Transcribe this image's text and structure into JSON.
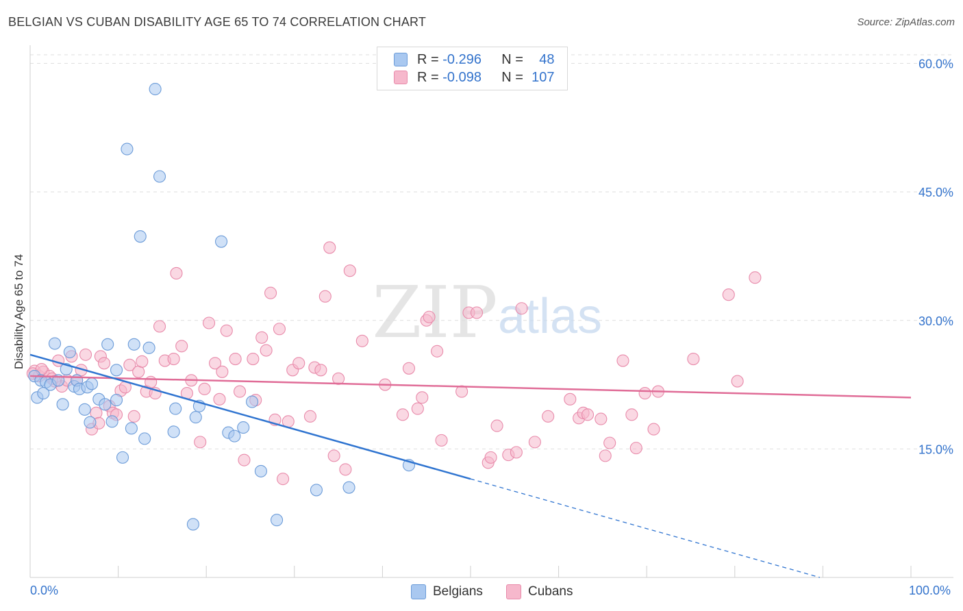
{
  "title": "BELGIAN VS CUBAN DISABILITY AGE 65 TO 74 CORRELATION CHART",
  "source": "Source: ZipAtlas.com",
  "watermark": {
    "zip": "ZIP",
    "atlas": "atlas"
  },
  "legend": {
    "rows": [
      {
        "r_label": "R =",
        "r_value": "-0.296",
        "n_label": "N =",
        "n_value": "48"
      },
      {
        "r_label": "R =",
        "r_value": "-0.098",
        "n_label": "N =",
        "n_value": "107"
      }
    ]
  },
  "bottom_legend": {
    "belgians": "Belgians",
    "cubans": "Cubans"
  },
  "colors": {
    "belgian_fill": "#a9c8f0",
    "belgian_stroke": "#6b9bd8",
    "belgian_line": "#2f74d0",
    "cuban_fill": "#f6b8cc",
    "cuban_stroke": "#e88aaa",
    "cuban_line": "#e06c97",
    "tick_text": "#3373cc",
    "grid": "#dedede"
  },
  "chart_data": {
    "type": "scatter",
    "title": "BELGIAN VS CUBAN DISABILITY AGE 65 TO 74 CORRELATION CHART",
    "xlabel": "",
    "ylabel": "Disability Age 65 to 74",
    "xlim": [
      0,
      100
    ],
    "ylim": [
      0,
      61
    ],
    "x_tick_labels": [
      "0.0%",
      "100.0%"
    ],
    "y_ticks": [
      15,
      30,
      45,
      60
    ],
    "y_tick_labels": [
      "15.0%",
      "30.0%",
      "45.0%",
      "60.0%"
    ],
    "series": [
      {
        "name": "Belgians",
        "r": -0.296,
        "n": 48,
        "trend": {
          "x0": 0,
          "y0": 26.0,
          "x1": 50,
          "y1": 11.5,
          "dashed_to_x": 100,
          "dashed_y1": -3.0
        },
        "points": [
          [
            0.5,
            23.5
          ],
          [
            0.8,
            21
          ],
          [
            1.2,
            23
          ],
          [
            1.5,
            21.5
          ],
          [
            1.8,
            22.8
          ],
          [
            2.3,
            22.5
          ],
          [
            2.8,
            27.3
          ],
          [
            3.2,
            23
          ],
          [
            3.7,
            20.2
          ],
          [
            4.1,
            24.3
          ],
          [
            4.5,
            26.3
          ],
          [
            5,
            22.3
          ],
          [
            5.3,
            23
          ],
          [
            5.6,
            22
          ],
          [
            6.2,
            19.6
          ],
          [
            6.5,
            22.2
          ],
          [
            6.8,
            18.1
          ],
          [
            7,
            22.6
          ],
          [
            7.8,
            20.8
          ],
          [
            8.5,
            20.2
          ],
          [
            8.8,
            27.2
          ],
          [
            9.3,
            18.2
          ],
          [
            9.8,
            20.7
          ],
          [
            9.8,
            24.2
          ],
          [
            10.5,
            14
          ],
          [
            11,
            50
          ],
          [
            11.5,
            17.4
          ],
          [
            11.8,
            27.2
          ],
          [
            12.5,
            39.8
          ],
          [
            13,
            16.2
          ],
          [
            13.5,
            26.8
          ],
          [
            14.2,
            57
          ],
          [
            14.7,
            46.8
          ],
          [
            16.3,
            17
          ],
          [
            16.5,
            19.7
          ],
          [
            18.5,
            6.2
          ],
          [
            18.8,
            18.7
          ],
          [
            19.2,
            20
          ],
          [
            21.7,
            39.2
          ],
          [
            22.5,
            16.9
          ],
          [
            23.2,
            16.5
          ],
          [
            24.2,
            17.5
          ],
          [
            25.2,
            20.5
          ],
          [
            26.2,
            12.4
          ],
          [
            28,
            6.7
          ],
          [
            32.5,
            10.2
          ],
          [
            36.2,
            10.5
          ],
          [
            43,
            13.1
          ]
        ]
      },
      {
        "name": "Cubans",
        "r": -0.098,
        "n": 107,
        "trend": {
          "x0": 0,
          "y0": 23.5,
          "x1": 100,
          "y1": 21.0
        },
        "points": [
          [
            0.5,
            24.1
          ],
          [
            1,
            23.5
          ],
          [
            1.5,
            24
          ],
          [
            2.2,
            23.5
          ],
          [
            2.5,
            23.2
          ],
          [
            3.2,
            25.3
          ],
          [
            3.6,
            22.3
          ],
          [
            4.2,
            23
          ],
          [
            4.7,
            25.8
          ],
          [
            5.3,
            23
          ],
          [
            5.8,
            24.2
          ],
          [
            6.3,
            26
          ],
          [
            7,
            17.3
          ],
          [
            7.5,
            19.2
          ],
          [
            7.8,
            18
          ],
          [
            8,
            25.8
          ],
          [
            8.4,
            25
          ],
          [
            9,
            20
          ],
          [
            9.4,
            19.2
          ],
          [
            9.8,
            19
          ],
          [
            10.3,
            21.8
          ],
          [
            10.8,
            22.2
          ],
          [
            11.3,
            24.8
          ],
          [
            11.8,
            18.8
          ],
          [
            12.3,
            24
          ],
          [
            12.7,
            25.2
          ],
          [
            13.2,
            21.7
          ],
          [
            13.7,
            22.8
          ],
          [
            14.2,
            21.5
          ],
          [
            14.7,
            29.3
          ],
          [
            15.3,
            25.3
          ],
          [
            16.3,
            25.5
          ],
          [
            16.6,
            35.5
          ],
          [
            17.2,
            27
          ],
          [
            17.8,
            21.5
          ],
          [
            18.3,
            23
          ],
          [
            19.3,
            15.8
          ],
          [
            19.8,
            22
          ],
          [
            20.3,
            29.7
          ],
          [
            21,
            25
          ],
          [
            21.5,
            20.8
          ],
          [
            21.8,
            24
          ],
          [
            22.3,
            28.8
          ],
          [
            23.3,
            25.5
          ],
          [
            23.8,
            21.7
          ],
          [
            24.3,
            13.7
          ],
          [
            25.3,
            25.5
          ],
          [
            25.6,
            20.7
          ],
          [
            26.3,
            28
          ],
          [
            26.8,
            26.5
          ],
          [
            27.3,
            33.2
          ],
          [
            27.8,
            18.4
          ],
          [
            28.3,
            29
          ],
          [
            28.7,
            11.5
          ],
          [
            29.3,
            18.2
          ],
          [
            29.8,
            24.2
          ],
          [
            30.5,
            25
          ],
          [
            31.8,
            18.8
          ],
          [
            32.3,
            24.5
          ],
          [
            33,
            24.2
          ],
          [
            33.5,
            32.8
          ],
          [
            34,
            38.5
          ],
          [
            34.5,
            14.2
          ],
          [
            35,
            23.2
          ],
          [
            35.8,
            12.6
          ],
          [
            36.3,
            35.8
          ],
          [
            37.7,
            27.6
          ],
          [
            40.3,
            22.5
          ],
          [
            42.3,
            19
          ],
          [
            43,
            24.4
          ],
          [
            44,
            19.7
          ],
          [
            44.5,
            21
          ],
          [
            45,
            30
          ],
          [
            45.3,
            30.4
          ],
          [
            46.2,
            26.4
          ],
          [
            46.7,
            16
          ],
          [
            49,
            21.7
          ],
          [
            49.8,
            30.9
          ],
          [
            50.7,
            30.9
          ],
          [
            52,
            13.4
          ],
          [
            52.3,
            14
          ],
          [
            53,
            17.7
          ],
          [
            54.3,
            14.3
          ],
          [
            55.2,
            14.6
          ],
          [
            55.8,
            31.4
          ],
          [
            57.3,
            15.8
          ],
          [
            58.8,
            18.8
          ],
          [
            61.3,
            20.8
          ],
          [
            62.3,
            18.6
          ],
          [
            62.8,
            19.2
          ],
          [
            63.3,
            19
          ],
          [
            64.8,
            18.5
          ],
          [
            65.3,
            14.2
          ],
          [
            65.8,
            15.7
          ],
          [
            67.3,
            25.3
          ],
          [
            68.3,
            19
          ],
          [
            68.8,
            15.1
          ],
          [
            69.8,
            21.5
          ],
          [
            70.8,
            17.3
          ],
          [
            71.3,
            21.7
          ],
          [
            75.3,
            25.5
          ],
          [
            79.3,
            33
          ],
          [
            80.3,
            22.9
          ],
          [
            82.3,
            35
          ],
          [
            0.3,
            23.8
          ],
          [
            1.3,
            24.3
          ],
          [
            2.8,
            22.9
          ]
        ]
      }
    ]
  }
}
